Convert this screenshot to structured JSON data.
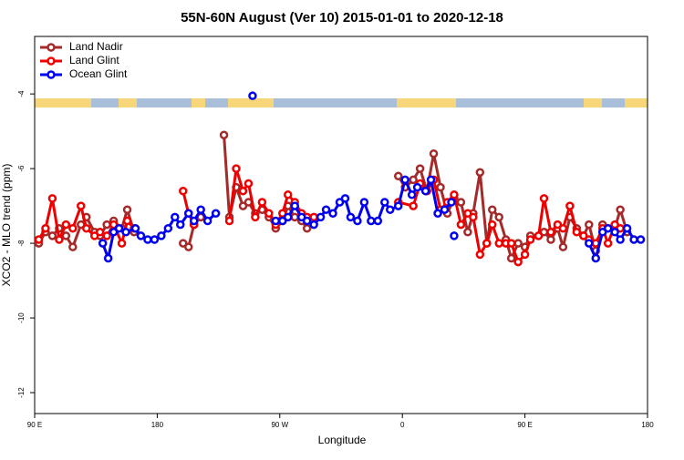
{
  "chart_data": {
    "type": "line",
    "title": "55N-60N August (Ver 10)   2015-01-01 to 2020-12-18",
    "x_label": "Longitude",
    "y_label": "XCO2 - MLO trend (ppm)",
    "xlim": [
      90,
      540
    ],
    "ylim": [
      -12.56,
      -2.46
    ],
    "xticks": [
      {
        "value": 90,
        "label": "90 E"
      },
      {
        "value": 180,
        "label": "180"
      },
      {
        "value": 270,
        "label": "90 W"
      },
      {
        "value": 360,
        "label": "0"
      },
      {
        "value": 450,
        "label": "90 E"
      },
      {
        "value": 540,
        "label": "180"
      }
    ],
    "yticks": [
      -4,
      -6,
      -8,
      -10,
      -12
    ],
    "legend": "top-left",
    "series": [
      {
        "name": "Land Nadir",
        "color": "#a52a2a",
        "x": [
          93,
          98,
          103,
          108,
          113,
          118,
          124,
          128,
          134,
          138,
          143,
          148,
          154,
          158,
          163,
          null,
          199,
          203,
          207,
          212,
          null,
          229,
          233,
          238,
          243,
          247,
          252,
          257,
          262,
          267,
          272,
          276,
          281,
          286,
          290,
          null,
          357,
          362,
          368,
          373,
          378,
          383,
          388,
          393,
          398,
          403,
          408,
          412,
          417,
          422,
          426,
          431,
          436,
          440,
          445,
          450,
          454,
          460,
          464,
          469,
          474,
          478,
          483,
          488,
          493,
          497,
          502,
          507,
          511,
          516,
          520,
          525
        ],
        "values": [
          -8.0,
          -7.7,
          -7.8,
          -7.6,
          -7.8,
          -8.1,
          -7.5,
          -7.3,
          -7.7,
          -7.8,
          -7.5,
          -7.4,
          -7.6,
          -7.1,
          -7.7,
          null,
          -8.0,
          -8.1,
          -7.5,
          -7.3,
          null,
          -5.1,
          -7.3,
          -6.5,
          -7.0,
          -6.9,
          -7.2,
          -7.1,
          -7.3,
          -7.6,
          -7.4,
          -7.0,
          -7.3,
          -7.4,
          -7.6,
          null,
          -6.2,
          -6.5,
          -6.3,
          -6.0,
          -6.6,
          -5.6,
          -6.5,
          -7.2,
          -6.8,
          -6.9,
          -7.7,
          -7.2,
          -6.1,
          -8.0,
          -7.1,
          -7.3,
          -7.9,
          -8.4,
          -8.0,
          -8.1,
          -7.8,
          -7.8,
          -7.7,
          -7.9,
          -7.6,
          -8.1,
          -7.3,
          -7.6,
          -7.8,
          -7.5,
          -8.2,
          -7.5,
          -7.6,
          -7.6,
          -7.1,
          -7.7
        ]
      },
      {
        "name": "Land Glint",
        "color": "#ee0000",
        "x": [
          93,
          98,
          103,
          108,
          113,
          118,
          124,
          128,
          134,
          138,
          143,
          148,
          154,
          158,
          163,
          null,
          199,
          203,
          207,
          null,
          233,
          238,
          243,
          247,
          252,
          257,
          262,
          267,
          272,
          276,
          281,
          286,
          290,
          295,
          null,
          357,
          368,
          373,
          378,
          383,
          388,
          393,
          398,
          403,
          408,
          412,
          417,
          422,
          426,
          431,
          436,
          440,
          445,
          450,
          454,
          460,
          464,
          469,
          474,
          478,
          483,
          488,
          493,
          497,
          502,
          507,
          511,
          516,
          520
        ],
        "values": [
          -7.9,
          -7.6,
          -6.8,
          -7.9,
          -7.5,
          -7.6,
          -7.0,
          -7.6,
          -7.8,
          -7.7,
          -7.8,
          -7.5,
          -8.0,
          -7.4,
          -7.6,
          null,
          -6.6,
          -7.2,
          -7.5,
          null,
          -7.4,
          -6.0,
          -6.6,
          -6.4,
          -7.3,
          -6.9,
          -7.2,
          -7.5,
          -7.2,
          -6.7,
          -6.9,
          -7.2,
          -7.3,
          -7.3,
          null,
          -6.9,
          -7.0,
          -6.4,
          -6.6,
          -6.3,
          -7.1,
          -6.9,
          -6.7,
          -7.5,
          -7.2,
          -7.3,
          -8.3,
          -8.0,
          -7.5,
          -8.0,
          -8.0,
          -8.0,
          -8.5,
          -8.3,
          -7.9,
          -7.8,
          -6.8,
          -7.7,
          -7.5,
          -7.6,
          -7.0,
          -7.7,
          -7.8,
          -7.9,
          -8.0,
          -7.6,
          -8.0,
          -7.5,
          -7.6
        ]
      },
      {
        "name": "Ocean Glint",
        "color": "#0000ee",
        "x": [
          140,
          144,
          148,
          152,
          157,
          164,
          168,
          173,
          178,
          183,
          188,
          193,
          197,
          203,
          207,
          212,
          217,
          223,
          null,
          250,
          null,
          267,
          272,
          276,
          281,
          286,
          290,
          295,
          300,
          304,
          309,
          314,
          318,
          322,
          327,
          332,
          337,
          342,
          347,
          351,
          357,
          362,
          367,
          371,
          377,
          381,
          386,
          391,
          396,
          null,
          398,
          null,
          497,
          502,
          507,
          511,
          516,
          520,
          525,
          530,
          535
        ],
        "values": [
          -8.0,
          -8.4,
          -7.7,
          -7.6,
          -7.7,
          -7.6,
          -7.8,
          -7.9,
          -7.9,
          -7.8,
          -7.6,
          -7.3,
          -7.5,
          -7.2,
          -7.4,
          -7.1,
          -7.4,
          -7.2,
          null,
          -4.05,
          null,
          -7.4,
          -7.4,
          -7.3,
          -7.0,
          -7.3,
          -7.4,
          -7.5,
          -7.3,
          -7.1,
          -7.2,
          -6.9,
          -6.8,
          -7.3,
          -7.4,
          -6.9,
          -7.4,
          -7.4,
          -6.9,
          -7.1,
          -7.0,
          -6.3,
          -6.7,
          -6.5,
          -6.6,
          -6.3,
          -7.2,
          -7.1,
          -6.9,
          null,
          -7.8,
          null,
          -8.0,
          -8.4,
          -7.7,
          -7.6,
          -7.7,
          -7.9,
          -7.6,
          -7.9,
          -7.9
        ]
      }
    ]
  }
}
